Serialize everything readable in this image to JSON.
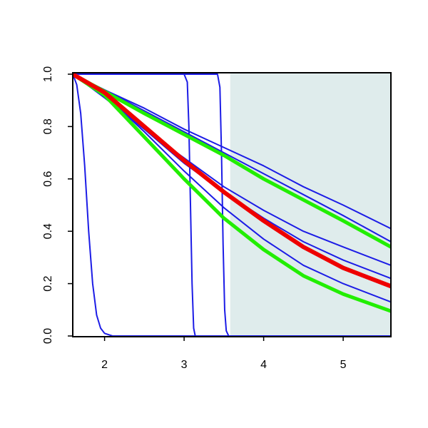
{
  "chart_data": {
    "type": "line",
    "xlim": [
      1.6,
      5.6
    ],
    "ylim": [
      0,
      1
    ],
    "xticks": [
      2,
      3,
      4,
      5
    ],
    "yticks": [
      {
        "value": 0,
        "label": "0.0"
      },
      {
        "value": 0.2,
        "label": "0.2"
      },
      {
        "value": 0.4,
        "label": "0.4"
      },
      {
        "value": 0.6,
        "label": "0.6"
      },
      {
        "value": 0.8,
        "label": "0.8"
      },
      {
        "value": 1,
        "label": "1.0"
      }
    ],
    "shaded_region": {
      "xlim": [
        3.58,
        5.6
      ],
      "color": "#dfecec"
    },
    "series": [
      {
        "color": "#1c1ce6",
        "width": 2,
        "x": [
          1.6,
          1.65,
          1.7,
          1.75,
          1.8,
          1.85,
          1.9,
          1.95,
          2.0,
          2.1,
          5.6
        ],
        "values": [
          1,
          0.96,
          0.85,
          0.65,
          0.4,
          0.2,
          0.08,
          0.03,
          0.01,
          0,
          0
        ]
      },
      {
        "color": "#1c1ce6",
        "width": 2,
        "x": [
          1.6,
          3.0,
          3.04,
          3.06,
          3.08,
          3.1,
          3.12,
          3.14,
          5.6
        ],
        "values": [
          1,
          1,
          0.97,
          0.8,
          0.5,
          0.2,
          0.03,
          0,
          0
        ]
      },
      {
        "color": "#1c1ce6",
        "width": 2,
        "x": [
          1.6,
          3.42,
          3.45,
          3.47,
          3.49,
          3.51,
          3.53,
          3.56,
          5.6
        ],
        "values": [
          1,
          1,
          0.95,
          0.7,
          0.35,
          0.1,
          0.02,
          0,
          0
        ]
      },
      {
        "color": "#1c1ce6",
        "width": 2,
        "x": [
          1.6,
          2.0,
          2.5,
          3.0,
          3.5,
          4.0,
          4.5,
          5.0,
          5.6
        ],
        "values": [
          1,
          0.94,
          0.87,
          0.79,
          0.72,
          0.65,
          0.57,
          0.5,
          0.41
        ]
      },
      {
        "color": "#1c1ce6",
        "width": 2,
        "x": [
          1.6,
          2.0,
          2.5,
          3.0,
          3.5,
          4.0,
          4.5,
          5.0,
          5.6
        ],
        "values": [
          1,
          0.94,
          0.86,
          0.78,
          0.7,
          0.62,
          0.54,
          0.46,
          0.36
        ]
      },
      {
        "color": "#1c1ce6",
        "width": 2,
        "x": [
          1.6,
          2.0,
          2.5,
          3.0,
          3.5,
          4.0,
          4.5,
          5.0,
          5.6
        ],
        "values": [
          1,
          0.91,
          0.79,
          0.68,
          0.57,
          0.48,
          0.4,
          0.34,
          0.27
        ]
      },
      {
        "color": "#1c1ce6",
        "width": 2,
        "x": [
          1.6,
          2.0,
          2.5,
          3.0,
          3.5,
          4.0,
          4.5,
          5.0,
          5.6
        ],
        "values": [
          1,
          0.92,
          0.79,
          0.66,
          0.55,
          0.45,
          0.36,
          0.29,
          0.22
        ]
      },
      {
        "color": "#1c1ce6",
        "width": 2,
        "x": [
          1.6,
          2.0,
          2.5,
          3.0,
          3.5,
          4.0,
          4.5,
          5.0,
          5.6
        ],
        "values": [
          1,
          0.92,
          0.78,
          0.63,
          0.49,
          0.37,
          0.27,
          0.2,
          0.13
        ]
      },
      {
        "color": "#22ee00",
        "width": 5,
        "x": [
          1.6,
          2.0,
          2.5,
          3.0,
          3.5,
          4.0,
          4.5,
          5.0,
          5.6
        ],
        "values": [
          1,
          0.934,
          0.85,
          0.77,
          0.69,
          0.6,
          0.52,
          0.44,
          0.34
        ]
      },
      {
        "color": "#22ee00",
        "width": 5,
        "x": [
          1.6,
          2.0,
          2.5,
          3.0,
          3.5,
          4.0,
          4.5,
          5.0,
          5.6
        ],
        "values": [
          1,
          0.92,
          0.76,
          0.6,
          0.45,
          0.33,
          0.23,
          0.16,
          0.095
        ]
      },
      {
        "color": "#ee0000",
        "width": 6,
        "x": [
          1.6,
          2.0,
          2.5,
          3.0,
          3.5,
          4.0,
          4.5,
          5.0,
          5.6
        ],
        "values": [
          1,
          0.93,
          0.8,
          0.67,
          0.55,
          0.44,
          0.34,
          0.26,
          0.19
        ]
      }
    ]
  }
}
